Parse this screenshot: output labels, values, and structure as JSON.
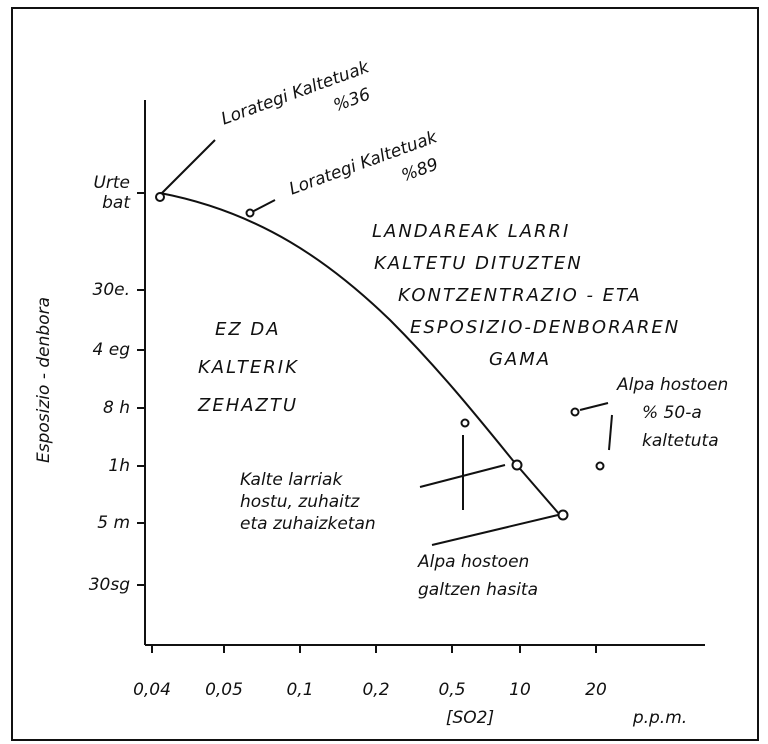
{
  "axes": {
    "y_label": "Esposizio - denbora",
    "x_label": "[SO2]",
    "x_unit": "p.p.m.",
    "x_ticks": [
      "0,04",
      "0,05",
      "0,1",
      "0,2",
      "0,5",
      "10",
      "20"
    ],
    "y_ticks": [
      [
        "Urte",
        "bat"
      ],
      [
        "30e."
      ],
      [
        "4 eg"
      ],
      [
        "8 h"
      ],
      [
        "1h"
      ],
      [
        "5 m"
      ],
      [
        "30sg"
      ]
    ]
  },
  "regions": [
    {
      "lines": [
        "EZ DA",
        "KALTERIK",
        "ZEHAZTU"
      ]
    },
    {
      "lines": [
        "LANDAREAK LARRI",
        "KALTETU DITUZTEN",
        "KONTZENTRAZIO - ETA",
        "ESPOSIZIO-DENBORAREN",
        "GAMA"
      ]
    }
  ],
  "annotations": [
    {
      "lines": [
        "Lorategi Kaltetuak",
        "%36"
      ]
    },
    {
      "lines": [
        "Lorategi Kaltetuak",
        "%89"
      ]
    },
    {
      "lines": [
        "Kalte larriak",
        "hostu, zuhaitz",
        "eta zuhaizketan"
      ]
    },
    {
      "lines": [
        "Alpa hostoen",
        "galtzen hasita"
      ]
    },
    {
      "lines": [
        "Alpa hostoen",
        "% 50-a",
        "kaltetuta"
      ]
    }
  ]
}
